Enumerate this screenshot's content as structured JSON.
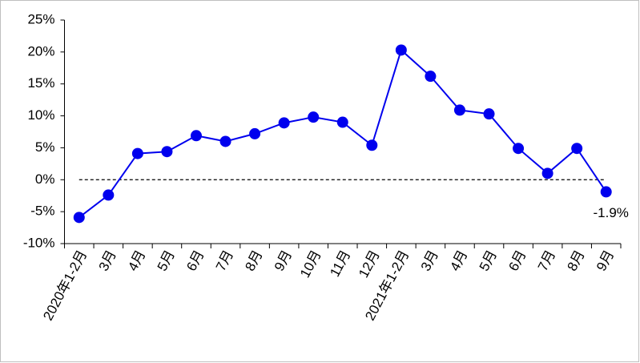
{
  "chart_data": {
    "type": "line",
    "categories": [
      "2020年1-2月",
      "3月",
      "4月",
      "5月",
      "6月",
      "7月",
      "8月",
      "9月",
      "10月",
      "11月",
      "12月",
      "2021年1-2月",
      "3月",
      "4月",
      "5月",
      "6月",
      "7月",
      "8月",
      "9月"
    ],
    "series": [
      {
        "color": "#0000ee",
        "values": [
          -5.9,
          -2.4,
          4.1,
          4.4,
          6.9,
          6.0,
          7.2,
          8.9,
          9.8,
          9.0,
          5.4,
          20.3,
          16.2,
          10.9,
          10.3,
          4.9,
          1.0,
          4.9,
          -1.9
        ],
        "value_labels": [
          null,
          null,
          null,
          null,
          null,
          null,
          null,
          null,
          null,
          null,
          null,
          null,
          null,
          null,
          null,
          null,
          null,
          null,
          "-1.9%"
        ]
      }
    ],
    "ylim": [
      -10,
      25
    ],
    "yticks": [
      {
        "value": -10,
        "label": "-10%"
      },
      {
        "value": -5,
        "label": "-5%"
      },
      {
        "value": 0,
        "label": "0%"
      },
      {
        "value": 5,
        "label": "5%"
      },
      {
        "value": 10,
        "label": "10%"
      },
      {
        "value": 15,
        "label": "15%"
      },
      {
        "value": 20,
        "label": "20%"
      },
      {
        "value": 25,
        "label": "25%"
      }
    ],
    "grid": false,
    "zero_line_dashed": true
  }
}
